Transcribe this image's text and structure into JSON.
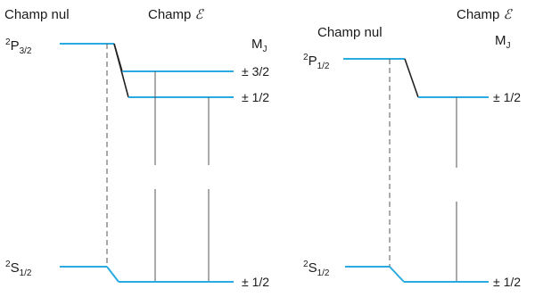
{
  "left_panel": {
    "header_zero_field": "Champ nul",
    "header_field_word": "Champ",
    "header_field_symbol": "ℰ",
    "mj_label": "M",
    "mj_sub": "J",
    "upper_term": {
      "sup": "2",
      "letter": "P",
      "sub": "3/2"
    },
    "lower_term": {
      "sup": "2",
      "letter": "S",
      "sub": "1/2"
    },
    "upper_values": [
      "± 3/2",
      "± 1/2"
    ],
    "lower_values": [
      "± 1/2"
    ]
  },
  "right_panel": {
    "header_zero_field": "Champ nul",
    "header_field_word": "Champ",
    "header_field_symbol": "ℰ",
    "mj_label": "M",
    "mj_sub": "J",
    "upper_term": {
      "sup": "2",
      "letter": "P",
      "sub": "1/2"
    },
    "lower_term": {
      "sup": "2",
      "letter": "S",
      "sub": "1/2"
    },
    "upper_values": [
      "± 1/2"
    ],
    "lower_values": [
      "± 1/2"
    ]
  },
  "colors": {
    "level": "#29abe2",
    "transition": "#555555",
    "split_connector": "#222222",
    "text": "#1a1a1a"
  }
}
